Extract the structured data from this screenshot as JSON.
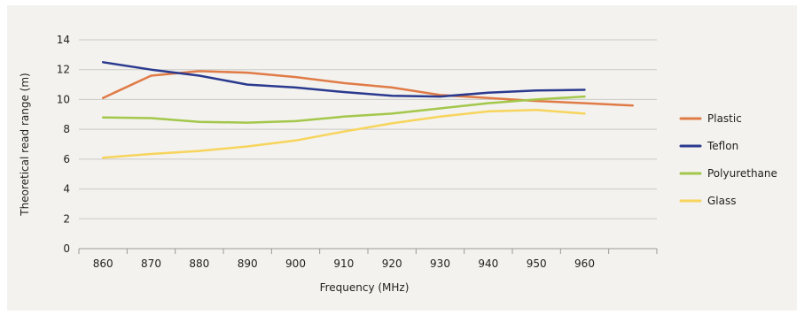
{
  "chart_data": {
    "type": "line",
    "xlabel": "Frequency (MHz)",
    "ylabel": "Theoretical read range (m)",
    "categories": [
      "860",
      "870",
      "880",
      "890",
      "900",
      "910",
      "920",
      "930",
      "940",
      "950",
      "960",
      ""
    ],
    "ylim": [
      0,
      14
    ],
    "yticks": [
      "0",
      "2",
      "4",
      "6",
      "8",
      "10",
      "12",
      "14"
    ],
    "grid": true,
    "legend_position": "right",
    "series": [
      {
        "name": "Plastic",
        "color": "#e07b47",
        "values": [
          10.1,
          11.6,
          11.9,
          11.8,
          11.5,
          11.1,
          10.8,
          10.3,
          10.1,
          9.9,
          9.75,
          9.6
        ]
      },
      {
        "name": "Teflon",
        "color": "#2b3a8f",
        "values": [
          12.5,
          12.0,
          11.6,
          11.0,
          10.8,
          10.5,
          10.25,
          10.2,
          10.45,
          10.6,
          10.65,
          null
        ]
      },
      {
        "name": "Polyurethane",
        "color": "#a3c74a",
        "values": [
          8.8,
          8.75,
          8.5,
          8.45,
          8.55,
          8.85,
          9.05,
          9.4,
          9.75,
          10.0,
          10.2,
          null
        ]
      },
      {
        "name": "Glass",
        "color": "#f7d45c",
        "values": [
          6.1,
          6.35,
          6.55,
          6.85,
          7.25,
          7.85,
          8.4,
          8.85,
          9.2,
          9.3,
          9.05,
          null
        ]
      }
    ]
  }
}
